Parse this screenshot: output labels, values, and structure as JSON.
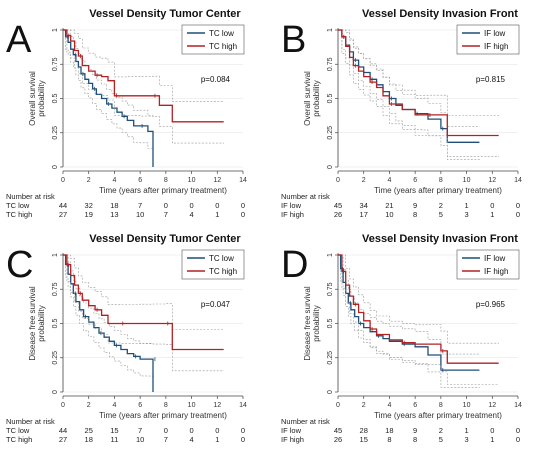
{
  "colors": {
    "low": "#1f4e79",
    "high": "#b22222",
    "ci": "#9a9a9a",
    "axis": "#444444"
  },
  "chart_data": [
    {
      "type": "line",
      "letter": "A",
      "title": "Vessel Density Tumor Center",
      "ylabel": "Overall survival probability",
      "xlabel": "Time (years after primary treatment)",
      "pvalue": "p=0.084",
      "legend": [
        "TC low",
        "TC high"
      ],
      "xticks": [
        0,
        2,
        4,
        6,
        8,
        10,
        12,
        14
      ],
      "yticks": [
        0,
        0.25,
        0.5,
        0.75,
        1
      ],
      "xlim": [
        0,
        14
      ],
      "ylim": [
        0,
        1
      ],
      "series": [
        {
          "name": "TC low",
          "x": [
            0,
            0.2,
            0.4,
            0.6,
            0.8,
            1.0,
            1.2,
            1.4,
            1.7,
            2.0,
            2.3,
            2.6,
            3.0,
            3.4,
            3.8,
            4.2,
            4.6,
            5.0,
            5.5,
            6.0,
            6.6,
            7.0,
            7.0
          ],
          "y": [
            1.0,
            0.95,
            0.91,
            0.86,
            0.82,
            0.77,
            0.73,
            0.68,
            0.64,
            0.61,
            0.57,
            0.53,
            0.5,
            0.46,
            0.43,
            0.4,
            0.37,
            0.34,
            0.3,
            0.3,
            0.26,
            0.26,
            0.0
          ]
        },
        {
          "name": "TC high",
          "x": [
            0,
            0.3,
            0.6,
            0.9,
            1.2,
            1.5,
            2.0,
            2.5,
            3.0,
            3.5,
            4.0,
            5.0,
            6.0,
            7.0,
            7.5,
            8.5,
            12.5
          ],
          "y": [
            1.0,
            0.96,
            0.92,
            0.85,
            0.81,
            0.74,
            0.7,
            0.67,
            0.66,
            0.63,
            0.52,
            0.52,
            0.52,
            0.52,
            0.45,
            0.33,
            0.33
          ]
        }
      ],
      "risk_table": {
        "header": "Number at risk",
        "rows": [
          {
            "label": "TC low",
            "values": [
              "44",
              "32",
              "18",
              "7",
              "0",
              "0",
              "0",
              "0"
            ]
          },
          {
            "label": "TC high",
            "values": [
              "27",
              "19",
              "13",
              "10",
              "7",
              "4",
              "1",
              "0"
            ]
          }
        ]
      }
    },
    {
      "type": "line",
      "letter": "B",
      "title": "Vessel Density Invasion Front",
      "ylabel": "Overall survival probability",
      "xlabel": "Time (years after primary treatment)",
      "pvalue": "p=0.815",
      "legend": [
        "IF low",
        "IF high"
      ],
      "xticks": [
        0,
        2,
        4,
        6,
        8,
        10,
        12,
        14
      ],
      "yticks": [
        0,
        0.25,
        0.5,
        0.75,
        1
      ],
      "xlim": [
        0,
        14
      ],
      "ylim": [
        0,
        1
      ],
      "series": [
        {
          "name": "IF low",
          "x": [
            0,
            0.3,
            0.6,
            0.9,
            1.2,
            1.6,
            2.0,
            2.5,
            3.0,
            3.5,
            4.0,
            4.5,
            5.0,
            6.0,
            6.5,
            7.0,
            8.0,
            8.5,
            11.0
          ],
          "y": [
            1.0,
            0.95,
            0.89,
            0.84,
            0.78,
            0.73,
            0.69,
            0.64,
            0.6,
            0.55,
            0.5,
            0.45,
            0.42,
            0.39,
            0.39,
            0.35,
            0.28,
            0.18,
            0.18
          ]
        },
        {
          "name": "IF high",
          "x": [
            0,
            0.3,
            0.6,
            0.9,
            1.2,
            1.6,
            2.0,
            2.5,
            3.0,
            3.5,
            4.0,
            5.0,
            6.0,
            7.0,
            8.5,
            12.5
          ],
          "y": [
            1.0,
            0.95,
            0.88,
            0.8,
            0.74,
            0.7,
            0.66,
            0.62,
            0.58,
            0.52,
            0.46,
            0.42,
            0.38,
            0.38,
            0.23,
            0.23
          ]
        }
      ],
      "risk_table": {
        "header": "Number at risk",
        "rows": [
          {
            "label": "IF low",
            "values": [
              "45",
              "34",
              "21",
              "9",
              "2",
              "1",
              "0",
              "0"
            ]
          },
          {
            "label": "IF high",
            "values": [
              "26",
              "17",
              "10",
              "8",
              "5",
              "3",
              "1",
              "0"
            ]
          }
        ]
      }
    },
    {
      "type": "line",
      "letter": "C",
      "title": "Vessel Density Tumor Center",
      "ylabel": "Disease free survival probability",
      "xlabel": "Time (years after primary treatment)",
      "pvalue": "p=0.047",
      "legend": [
        "TC low",
        "TC high"
      ],
      "xticks": [
        0,
        2,
        4,
        6,
        8,
        10,
        12,
        14
      ],
      "yticks": [
        0,
        0.25,
        0.5,
        0.75,
        1
      ],
      "xlim": [
        0,
        14
      ],
      "ylim": [
        0,
        1
      ],
      "series": [
        {
          "name": "TC low",
          "x": [
            0,
            0.2,
            0.4,
            0.6,
            0.8,
            1.0,
            1.3,
            1.6,
            2.0,
            2.4,
            2.8,
            3.2,
            3.6,
            4.0,
            4.5,
            5.0,
            5.5,
            6.0,
            6.5,
            7.0,
            7.0
          ],
          "y": [
            1.0,
            0.93,
            0.86,
            0.79,
            0.72,
            0.66,
            0.6,
            0.55,
            0.51,
            0.47,
            0.43,
            0.4,
            0.37,
            0.34,
            0.31,
            0.28,
            0.26,
            0.24,
            0.24,
            0.24,
            0.0
          ]
        },
        {
          "name": "TC high",
          "x": [
            0,
            0.3,
            0.6,
            0.9,
            1.2,
            1.5,
            2.0,
            2.5,
            3.0,
            3.5,
            4.5,
            6.0,
            7.0,
            8.0,
            8.5,
            12.5
          ],
          "y": [
            1.0,
            0.93,
            0.85,
            0.78,
            0.72,
            0.67,
            0.63,
            0.6,
            0.56,
            0.5,
            0.5,
            0.5,
            0.5,
            0.5,
            0.31,
            0.31
          ]
        }
      ],
      "risk_table": {
        "header": "Number at risk",
        "rows": [
          {
            "label": "TC low",
            "values": [
              "44",
              "25",
              "15",
              "7",
              "0",
              "0",
              "0",
              "0"
            ]
          },
          {
            "label": "TC high",
            "values": [
              "27",
              "18",
              "11",
              "10",
              "7",
              "4",
              "1",
              "0"
            ]
          }
        ]
      }
    },
    {
      "type": "line",
      "letter": "D",
      "title": "Vessel Density Invasion Front",
      "ylabel": "Disease free survival probability",
      "xlabel": "Time (years after primary treatment)",
      "pvalue": "p=0.965",
      "legend": [
        "IF low",
        "IF high"
      ],
      "xticks": [
        0,
        2,
        4,
        6,
        8,
        10,
        12,
        14
      ],
      "yticks": [
        0,
        0.25,
        0.5,
        0.75,
        1
      ],
      "xlim": [
        0,
        14
      ],
      "ylim": [
        0,
        1
      ],
      "series": [
        {
          "name": "IF low",
          "x": [
            0,
            0.2,
            0.4,
            0.6,
            0.8,
            1.0,
            1.3,
            1.6,
            2.0,
            2.5,
            3.0,
            3.5,
            4.0,
            5.0,
            6.0,
            7.0,
            8.0,
            11.0
          ],
          "y": [
            1.0,
            0.9,
            0.8,
            0.72,
            0.65,
            0.6,
            0.55,
            0.5,
            0.47,
            0.44,
            0.41,
            0.39,
            0.37,
            0.35,
            0.33,
            0.27,
            0.16,
            0.16
          ]
        },
        {
          "name": "IF high",
          "x": [
            0,
            0.3,
            0.6,
            0.9,
            1.2,
            1.6,
            2.0,
            2.5,
            3.0,
            4.0,
            5.0,
            6.0,
            7.0,
            8.0,
            8.5,
            12.5
          ],
          "y": [
            1.0,
            0.88,
            0.78,
            0.7,
            0.64,
            0.58,
            0.52,
            0.46,
            0.42,
            0.38,
            0.36,
            0.35,
            0.35,
            0.3,
            0.21,
            0.21
          ]
        }
      ],
      "risk_table": {
        "header": "Number at risk",
        "rows": [
          {
            "label": "IF low",
            "values": [
              "45",
              "28",
              "18",
              "9",
              "2",
              "1",
              "0",
              "0"
            ]
          },
          {
            "label": "IF high",
            "values": [
              "26",
              "15",
              "8",
              "8",
              "5",
              "3",
              "1",
              "0"
            ]
          }
        ]
      }
    }
  ]
}
